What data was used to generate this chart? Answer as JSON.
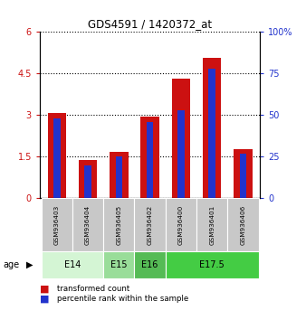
{
  "title": "GDS4591 / 1420372_at",
  "samples": [
    "GSM936403",
    "GSM936404",
    "GSM936405",
    "GSM936402",
    "GSM936400",
    "GSM936401",
    "GSM936406"
  ],
  "red_values": [
    3.08,
    1.37,
    1.67,
    2.95,
    4.33,
    5.08,
    1.77
  ],
  "blue_percentiles": [
    48,
    20,
    25,
    46,
    53,
    78,
    27
  ],
  "red_color": "#cc1111",
  "blue_color": "#2233cc",
  "ylim_left": [
    0,
    6
  ],
  "ylim_right": [
    0,
    100
  ],
  "yticks_left": [
    0,
    1.5,
    3,
    4.5,
    6
  ],
  "yticks_right": [
    0,
    25,
    50,
    75,
    100
  ],
  "ytick_labels_left": [
    "0",
    "1.5",
    "3",
    "4.5",
    "6"
  ],
  "ytick_labels_right": [
    "0",
    "25",
    "50",
    "75",
    "100%"
  ],
  "age_groups": [
    {
      "label": "E14",
      "start": 0,
      "end": 2,
      "color": "#d4f5d4"
    },
    {
      "label": "E15",
      "start": 2,
      "end": 3,
      "color": "#99dd99"
    },
    {
      "label": "E16",
      "start": 3,
      "end": 4,
      "color": "#55bb55"
    },
    {
      "label": "E17.5",
      "start": 4,
      "end": 7,
      "color": "#44cc44"
    }
  ],
  "age_label": "age",
  "legend_red": "transformed count",
  "legend_blue": "percentile rank within the sample",
  "bar_width": 0.6,
  "blue_bar_width": 0.22,
  "background_color": "#ffffff",
  "plot_bg": "#ffffff",
  "sample_bg": "#c8c8c8"
}
